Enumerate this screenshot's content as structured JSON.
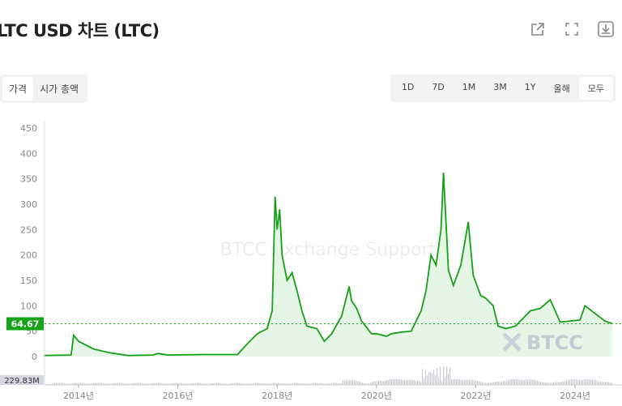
{
  "title": "LTC USD 차트 (LTC)",
  "toolbar_icons": [
    "share-icon",
    "fullscreen-icon",
    "download-icon"
  ],
  "metric_tabs": [
    {
      "label": "가격",
      "active": true
    },
    {
      "label": "시가 총액",
      "active": false
    }
  ],
  "range_tabs": [
    {
      "label": "1D"
    },
    {
      "label": "7D"
    },
    {
      "label": "1M"
    },
    {
      "label": "3M"
    },
    {
      "label": "1Y"
    },
    {
      "label": "올해"
    },
    {
      "label": "모두",
      "active": true
    }
  ],
  "watermark": "BTCC Exchange Support",
  "logo_text": "BTCC",
  "colors": {
    "line": "#16a016",
    "fill": "#e6f6e6",
    "current_badge": "#17a317",
    "volume": "#c9cbd3"
  },
  "chart_data": {
    "type": "area",
    "ylim": [
      0,
      450
    ],
    "yticks": [
      0,
      50,
      100,
      150,
      200,
      250,
      300,
      350,
      400,
      450
    ],
    "xticks": [
      {
        "year": 2014,
        "label": "2014년"
      },
      {
        "year": 2016,
        "label": "2016년"
      },
      {
        "year": 2018,
        "label": "2018년"
      },
      {
        "year": 2020,
        "label": "2020년"
      },
      {
        "year": 2022,
        "label": "2022년"
      },
      {
        "year": 2024,
        "label": "2024년"
      }
    ],
    "current_price": "64.67",
    "volume_label": "229.83M",
    "points": [
      [
        2013.3,
        2
      ],
      [
        2013.85,
        3
      ],
      [
        2013.9,
        42
      ],
      [
        2014.0,
        30
      ],
      [
        2014.1,
        25
      ],
      [
        2014.3,
        15
      ],
      [
        2014.6,
        8
      ],
      [
        2015.0,
        2
      ],
      [
        2015.5,
        3
      ],
      [
        2015.6,
        6
      ],
      [
        2015.8,
        3
      ],
      [
        2016.5,
        4
      ],
      [
        2017.0,
        4
      ],
      [
        2017.2,
        4
      ],
      [
        2017.4,
        25
      ],
      [
        2017.6,
        45
      ],
      [
        2017.8,
        55
      ],
      [
        2017.9,
        90
      ],
      [
        2017.96,
        315
      ],
      [
        2018.0,
        250
      ],
      [
        2018.05,
        290
      ],
      [
        2018.1,
        200
      ],
      [
        2018.2,
        150
      ],
      [
        2018.3,
        165
      ],
      [
        2018.4,
        130
      ],
      [
        2018.5,
        90
      ],
      [
        2018.6,
        60
      ],
      [
        2018.8,
        55
      ],
      [
        2018.95,
        30
      ],
      [
        2019.1,
        45
      ],
      [
        2019.3,
        80
      ],
      [
        2019.45,
        138
      ],
      [
        2019.5,
        110
      ],
      [
        2019.6,
        95
      ],
      [
        2019.7,
        70
      ],
      [
        2019.9,
        45
      ],
      [
        2020.0,
        45
      ],
      [
        2020.2,
        40
      ],
      [
        2020.3,
        45
      ],
      [
        2020.5,
        48
      ],
      [
        2020.7,
        50
      ],
      [
        2020.9,
        90
      ],
      [
        2021.0,
        130
      ],
      [
        2021.1,
        200
      ],
      [
        2021.2,
        180
      ],
      [
        2021.3,
        250
      ],
      [
        2021.35,
        362
      ],
      [
        2021.45,
        170
      ],
      [
        2021.55,
        140
      ],
      [
        2021.7,
        180
      ],
      [
        2021.85,
        265
      ],
      [
        2021.95,
        160
      ],
      [
        2022.1,
        120
      ],
      [
        2022.2,
        115
      ],
      [
        2022.35,
        100
      ],
      [
        2022.45,
        60
      ],
      [
        2022.6,
        55
      ],
      [
        2022.8,
        60
      ],
      [
        2022.95,
        75
      ],
      [
        2023.1,
        90
      ],
      [
        2023.3,
        95
      ],
      [
        2023.5,
        112
      ],
      [
        2023.6,
        90
      ],
      [
        2023.7,
        68
      ],
      [
        2023.9,
        70
      ],
      [
        2024.1,
        72
      ],
      [
        2024.2,
        100
      ],
      [
        2024.4,
        85
      ],
      [
        2024.6,
        70
      ],
      [
        2024.75,
        65
      ]
    ]
  }
}
